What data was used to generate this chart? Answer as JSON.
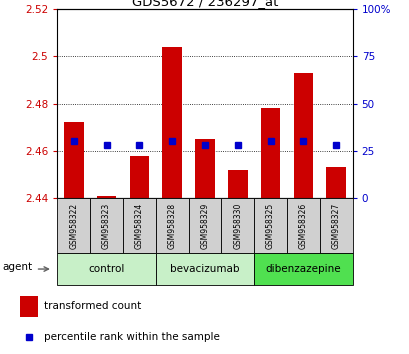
{
  "title": "GDS5672 / 236297_at",
  "samples": [
    "GSM958322",
    "GSM958323",
    "GSM958324",
    "GSM958328",
    "GSM958329",
    "GSM958330",
    "GSM958325",
    "GSM958326",
    "GSM958327"
  ],
  "red_values": [
    2.472,
    2.441,
    2.458,
    2.504,
    2.465,
    2.452,
    2.478,
    2.493,
    2.453
  ],
  "blue_values": [
    30,
    28,
    28,
    30,
    28,
    28,
    30,
    30,
    28
  ],
  "base_value": 2.44,
  "ylim_left": [
    2.44,
    2.52
  ],
  "ylim_right": [
    0,
    100
  ],
  "yticks_left": [
    2.44,
    2.46,
    2.48,
    2.5,
    2.52
  ],
  "yticks_right": [
    0,
    25,
    50,
    75,
    100
  ],
  "ytick_labels_left": [
    "2.44",
    "2.46",
    "2.48",
    "2.5",
    "2.52"
  ],
  "ytick_labels_right": [
    "0",
    "25",
    "50",
    "75",
    "100%"
  ],
  "groups": [
    {
      "label": "control",
      "indices": [
        0,
        1,
        2
      ],
      "color": "#c8f0c8"
    },
    {
      "label": "bevacizumab",
      "indices": [
        3,
        4,
        5
      ],
      "color": "#c8f0c8"
    },
    {
      "label": "dibenzazepine",
      "indices": [
        6,
        7,
        8
      ],
      "color": "#50e050"
    }
  ],
  "bar_color": "#cc0000",
  "blue_color": "#0000cc",
  "grid_color": "#000000",
  "bg_color": "#ffffff",
  "bar_width": 0.6,
  "blue_marker_size": 4,
  "agent_label": "agent",
  "legend_items": [
    "transformed count",
    "percentile rank within the sample"
  ],
  "right_axis_color": "#0000cc",
  "left_axis_color": "#cc0000"
}
